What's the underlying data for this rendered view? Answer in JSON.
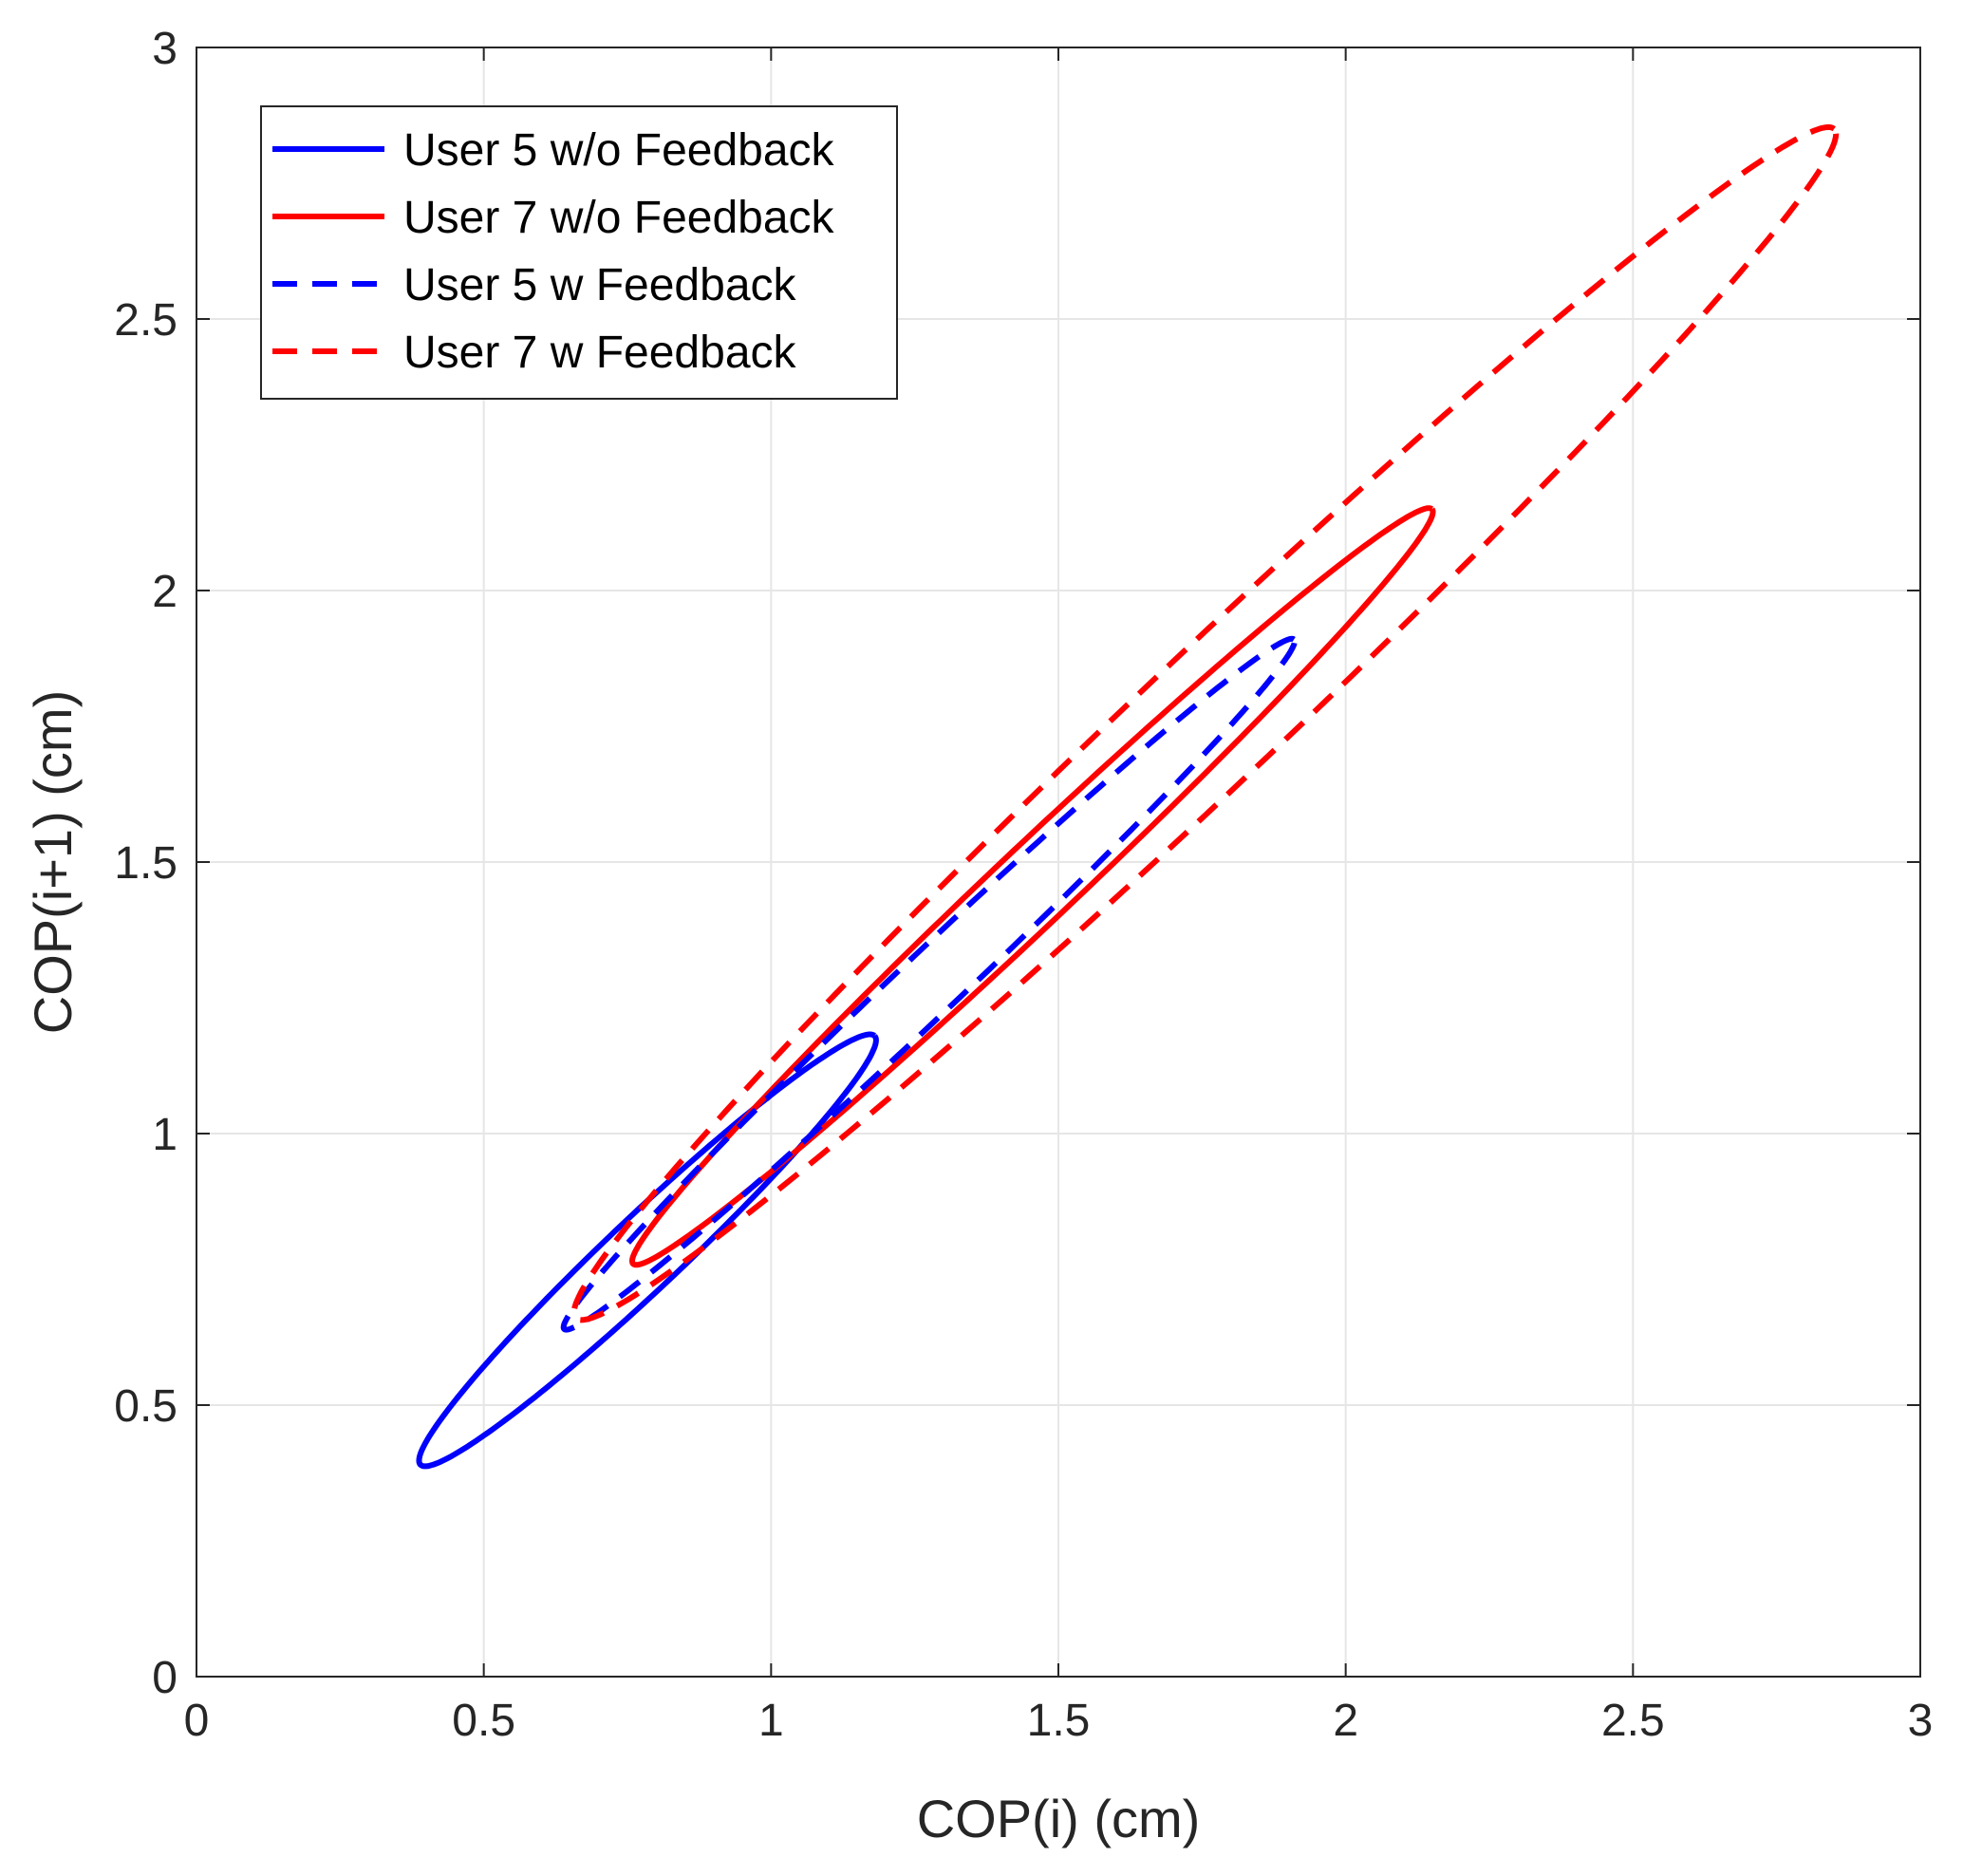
{
  "chart_data": {
    "type": "line",
    "title": "",
    "xlabel": "COP(i) (cm)",
    "ylabel": "COP(i+1) (cm)",
    "xlim": [
      0,
      3
    ],
    "ylim": [
      0,
      3
    ],
    "grid": true,
    "legend_position": "top-left",
    "xticks": [
      0,
      0.5,
      1,
      1.5,
      2,
      2.5,
      3
    ],
    "yticks": [
      0,
      0.5,
      1,
      1.5,
      2,
      2.5,
      3
    ],
    "xtick_labels": [
      "0",
      "0.5",
      "1",
      "1.5",
      "2",
      "2.5",
      "3"
    ],
    "ytick_labels": [
      "0",
      "0.5",
      "1",
      "1.5",
      "2",
      "2.5",
      "3"
    ],
    "series": [
      {
        "name": "User 5 w/o Feedback",
        "color": "#0000ff",
        "style": "solid",
        "ellipse": {
          "center": [
            0.785,
            0.785
          ],
          "end_low": [
            0.39,
            0.39
          ],
          "end_high": [
            1.18,
            1.18
          ],
          "minor_half_width": 0.065
        }
      },
      {
        "name": "User 7 w/o Feedback",
        "color": "#ff0000",
        "style": "solid",
        "ellipse": {
          "center": [
            1.455,
            1.455
          ],
          "end_low": [
            0.76,
            0.76
          ],
          "end_high": [
            2.15,
            2.15
          ],
          "minor_half_width": 0.07
        }
      },
      {
        "name": "User 5 w Feedback",
        "color": "#0000ff",
        "style": "dashed",
        "ellipse": {
          "center": [
            1.275,
            1.275
          ],
          "end_low": [
            0.64,
            0.64
          ],
          "end_high": [
            1.91,
            1.91
          ],
          "minor_half_width": 0.055
        }
      },
      {
        "name": "User 7 w Feedback",
        "color": "#ff0000",
        "style": "dashed",
        "ellipse": {
          "center": [
            1.755,
            1.755
          ],
          "end_low": [
            0.66,
            0.66
          ],
          "end_high": [
            2.85,
            2.85
          ],
          "minor_half_width": 0.12
        }
      }
    ]
  }
}
